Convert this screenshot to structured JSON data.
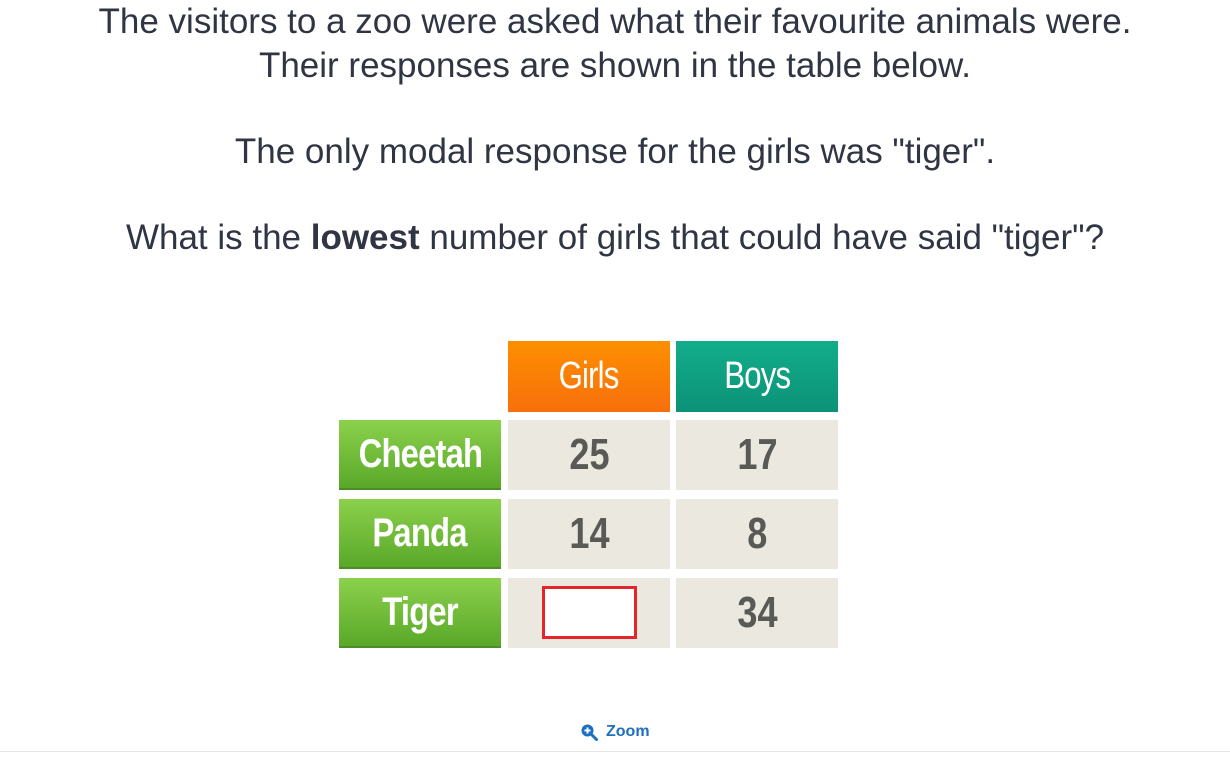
{
  "question": {
    "line1": "The visitors to a zoo were asked what their favourite animals were.",
    "line2": "Their responses are shown in the table below.",
    "line3": "The only modal response for the girls was \"tiger\".",
    "line4_pre": "What is the ",
    "line4_bold": "lowest",
    "line4_post": " number of girls that could have said \"tiger\"?"
  },
  "table": {
    "columns": [
      "Girls",
      "Boys"
    ],
    "rows": [
      {
        "label": "Cheetah",
        "girls": "25",
        "boys": "17"
      },
      {
        "label": "Panda",
        "girls": "14",
        "boys": "8"
      },
      {
        "label": "Tiger",
        "girls": "",
        "boys": "34"
      }
    ],
    "colors": {
      "girls_header": "#f7790a",
      "boys_header": "#0f9f80",
      "row_header": "#6fbb37",
      "value_cell": "#ebe8df",
      "answer_border": "#e4262b"
    }
  },
  "zoom": {
    "label": "Zoom",
    "icon": "zoom-in-icon"
  }
}
